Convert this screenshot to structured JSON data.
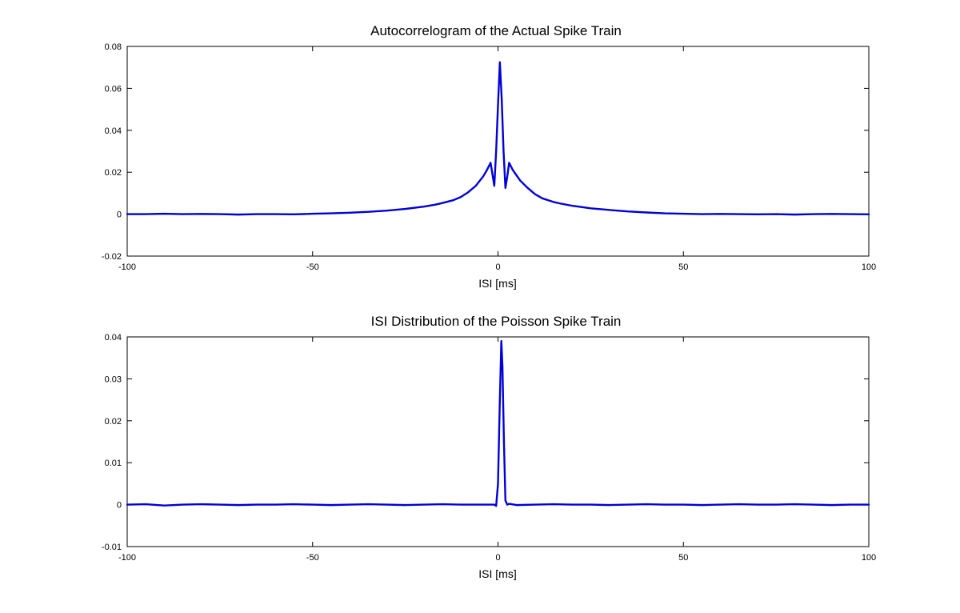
{
  "figure": {
    "background": "#ffffff",
    "line_color": "#0000d8"
  },
  "chart_data": [
    {
      "type": "line",
      "title": "Autocorrelogram of the Actual Spike Train",
      "xlabel": "ISI [ms]",
      "ylabel": "",
      "xlim": [
        -100,
        100
      ],
      "ylim": [
        -0.02,
        0.08
      ],
      "grid": false,
      "xticks": [
        -100,
        -50,
        0,
        50,
        100
      ],
      "xtick_labels": [
        "-100",
        "-50",
        "0",
        "50",
        "100"
      ],
      "yticks": [
        -0.02,
        0,
        0.02,
        0.04,
        0.06,
        0.08
      ],
      "ytick_labels": [
        "-0.02",
        "0",
        "0.02",
        "0.04",
        "0.06",
        "0.08"
      ],
      "series": [
        {
          "color": "#0000d8",
          "x": [
            -100,
            -95,
            -90,
            -85,
            -80,
            -75,
            -70,
            -65,
            -60,
            -55,
            -50,
            -45,
            -40,
            -35,
            -30,
            -25,
            -20,
            -17,
            -15,
            -12,
            -10,
            -8,
            -6,
            -4,
            -3,
            -2,
            -1.5,
            -1,
            -0.5,
            0,
            0.5,
            1,
            1.5,
            2,
            2.5,
            3,
            4,
            5,
            6,
            8,
            10,
            12,
            15,
            17,
            20,
            25,
            30,
            35,
            40,
            45,
            50,
            55,
            60,
            65,
            70,
            75,
            80,
            85,
            90,
            95,
            100
          ],
          "y": [
            0,
            0,
            0.0002,
            0,
            0.0001,
            0,
            -0.0002,
            0,
            0,
            -0.0001,
            0.0002,
            0.0004,
            0.0007,
            0.0011,
            0.0017,
            0.0025,
            0.0036,
            0.0045,
            0.0053,
            0.0067,
            0.0082,
            0.0105,
            0.0135,
            0.018,
            0.021,
            0.0245,
            0.019,
            0.0135,
            0.03,
            0.052,
            0.0725,
            0.055,
            0.03,
            0.0125,
            0.018,
            0.0245,
            0.021,
            0.0185,
            0.016,
            0.0125,
            0.0095,
            0.0075,
            0.0058,
            0.005,
            0.004,
            0.0028,
            0.002,
            0.0013,
            0.0008,
            0.0004,
            0.0002,
            0,
            0.0001,
            0,
            -0.0001,
            0,
            -0.0002,
            0,
            0.0001,
            0,
            -0.0001
          ]
        }
      ]
    },
    {
      "type": "line",
      "title": "ISI Distribution of the Poisson Spike Train",
      "xlabel": "ISI [ms]",
      "ylabel": "",
      "xlim": [
        -100,
        100
      ],
      "ylim": [
        -0.01,
        0.04
      ],
      "grid": false,
      "xticks": [
        -100,
        -50,
        0,
        50,
        100
      ],
      "xtick_labels": [
        "-100",
        "-50",
        "0",
        "50",
        "100"
      ],
      "yticks": [
        -0.01,
        0,
        0.01,
        0.02,
        0.03,
        0.04
      ],
      "ytick_labels": [
        "-0.01",
        "0",
        "0.01",
        "0.02",
        "0.03",
        "0.04"
      ],
      "series": [
        {
          "color": "#0000d8",
          "x": [
            -100,
            -95,
            -90,
            -85,
            -80,
            -75,
            -70,
            -65,
            -60,
            -55,
            -50,
            -45,
            -40,
            -35,
            -30,
            -25,
            -20,
            -15,
            -10,
            -5,
            -1,
            -0.5,
            0,
            0.5,
            0.9,
            1.2,
            1.6,
            2,
            2.5,
            3,
            5,
            10,
            15,
            20,
            25,
            30,
            35,
            40,
            45,
            50,
            55,
            60,
            65,
            70,
            75,
            80,
            85,
            90,
            95,
            100
          ],
          "y": [
            0,
            0.0001,
            -0.0002,
            0,
            0.0001,
            0,
            -0.0001,
            0,
            0,
            0.0001,
            0,
            -0.0001,
            0,
            0.0001,
            0,
            -0.0001,
            0,
            0.0001,
            0,
            0,
            0,
            -0.0003,
            0.005,
            0.025,
            0.039,
            0.033,
            0.015,
            0.001,
            0,
            0.0002,
            -0.0001,
            0,
            0.0001,
            0,
            0,
            -0.0001,
            0,
            0.0001,
            0,
            0,
            -0.0001,
            0,
            0.0001,
            0,
            0,
            0.0001,
            0,
            -0.0001,
            0,
            0
          ]
        }
      ]
    }
  ]
}
